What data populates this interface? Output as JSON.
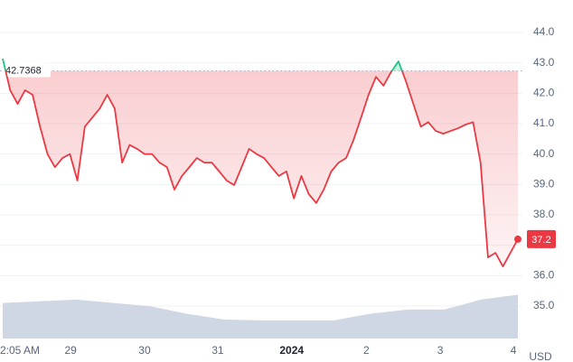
{
  "chart_data": {
    "type": "line",
    "series": [
      {
        "name": "Price",
        "color": "#ea3943",
        "color_above": "#16c784",
        "values": [
          43.14,
          42.1,
          41.65,
          42.1,
          41.95,
          40.9,
          40.0,
          39.57,
          39.87,
          40.0,
          39.13,
          40.9,
          41.2,
          41.5,
          41.95,
          41.5,
          39.72,
          40.3,
          40.17,
          40.0,
          40.0,
          39.72,
          39.57,
          38.83,
          39.28,
          39.57,
          39.87,
          39.72,
          39.72,
          39.43,
          39.13,
          38.98,
          39.57,
          40.17,
          40.0,
          39.87,
          39.57,
          39.28,
          39.43,
          38.54,
          39.28,
          38.68,
          38.39,
          38.83,
          39.43,
          39.72,
          39.87,
          40.47,
          41.2,
          41.95,
          42.54,
          42.25,
          42.69,
          43.05,
          42.4,
          41.65,
          40.9,
          41.05,
          40.76,
          40.67,
          40.76,
          40.85,
          40.97,
          41.05,
          39.72,
          36.6,
          36.75,
          36.3,
          36.75,
          37.2
        ]
      }
    ],
    "baseline": 42.7368,
    "volume": [
      43,
      45,
      47,
      43,
      39,
      30,
      23,
      22,
      22,
      22,
      30,
      35,
      35,
      47,
      53
    ],
    "volume_lim": [
      0,
      60
    ],
    "color_volume": "#cfd6e4",
    "xlim": [
      0,
      69
    ],
    "xticks": [
      {
        "value": 2.3,
        "label": "2:05 AM"
      },
      {
        "value": 9.1,
        "label": "29"
      },
      {
        "value": 19.0,
        "label": "30"
      },
      {
        "value": 28.8,
        "label": "31"
      },
      {
        "value": 38.7,
        "label": "2024"
      },
      {
        "value": 48.7,
        "label": "2"
      },
      {
        "value": 58.6,
        "label": "3"
      },
      {
        "value": 68.4,
        "label": "4"
      }
    ],
    "ylim": [
      35,
      44
    ],
    "yticks": [
      {
        "value": 35,
        "label": "35.0"
      },
      {
        "value": 36,
        "label": "36.0"
      },
      {
        "value": 37,
        "label": "37.0"
      },
      {
        "value": 38,
        "label": "38.0"
      },
      {
        "value": 39,
        "label": "39.0"
      },
      {
        "value": 40,
        "label": "40.0"
      },
      {
        "value": 41,
        "label": "41.0"
      },
      {
        "value": 42,
        "label": "42.0"
      },
      {
        "value": 43,
        "label": "43.0"
      },
      {
        "value": 44,
        "label": "44.0"
      }
    ],
    "grid": true,
    "currency": "USD"
  }
}
